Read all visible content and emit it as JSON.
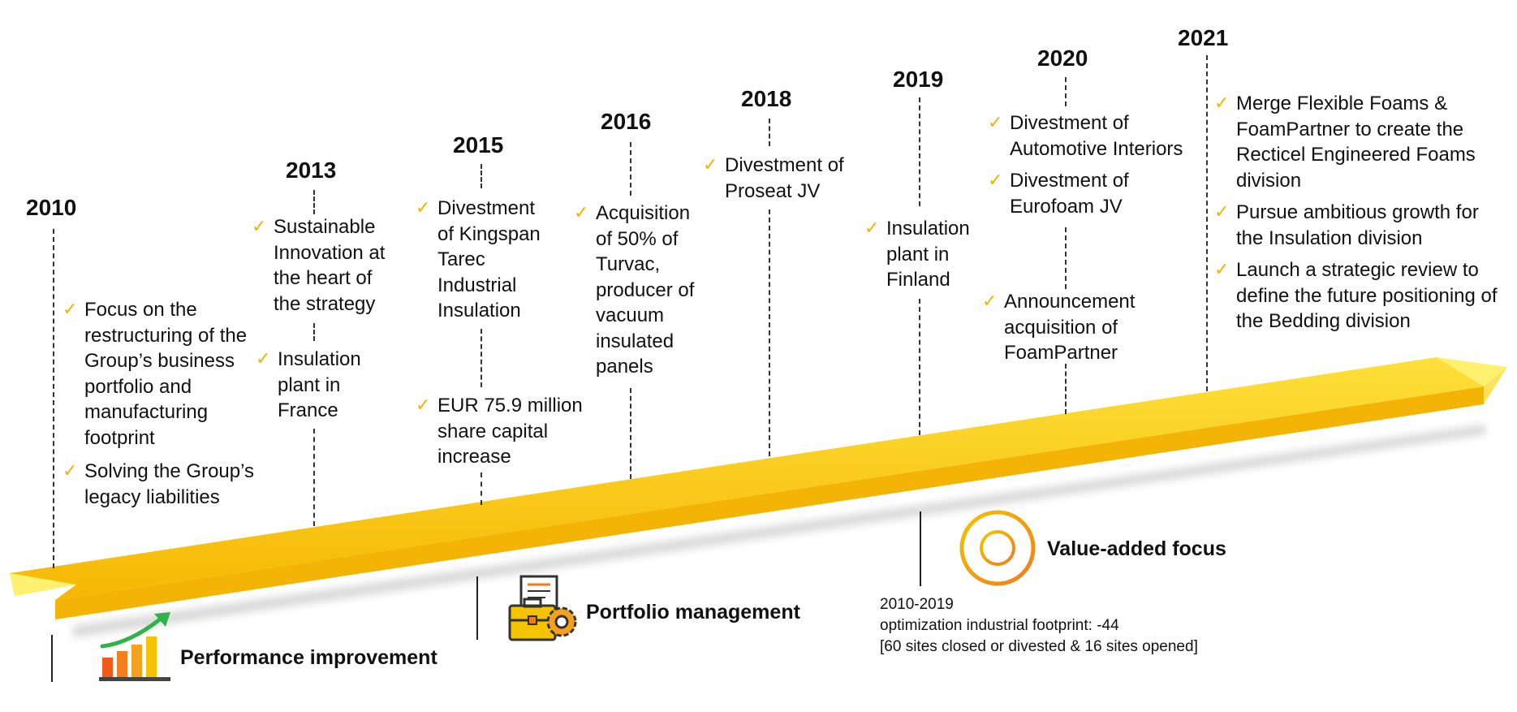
{
  "years": [
    {
      "label": "2010",
      "items": [
        "Focus on the restructuring of the Group’s business portfolio and manufacturing footprint",
        "Solving the Group’s legacy liabilities"
      ]
    },
    {
      "label": "2013",
      "items": [
        "Sustainable Innovation at the heart of the strategy",
        "Insulation plant in France"
      ]
    },
    {
      "label": "2015",
      "items": [
        "Divestment of Kingspan Tarec Industrial Insulation",
        "EUR 75.9 million share capital increase"
      ]
    },
    {
      "label": "2016",
      "items": [
        "Acquisition of 50% of Turvac, producer of vacuum insulated panels"
      ]
    },
    {
      "label": "2018",
      "items": [
        "Divestment of Proseat JV"
      ]
    },
    {
      "label": "2019",
      "items": [
        "Insulation plant in Finland"
      ]
    },
    {
      "label": "2020",
      "items": [
        "Divestment of Automotive Interiors",
        "Divestment of Eurofoam JV",
        "Announcement acquisition of FoamPartner"
      ]
    },
    {
      "label": "2021",
      "items": [
        "Merge Flexible Foams & FoamPartner to create the Recticel Engineered Foams division",
        "Pursue ambitious growth for the Insulation division",
        "Launch a strategic review to define the future positioning of the Bedding division"
      ]
    }
  ],
  "check_symbol": "✓",
  "categories": {
    "performance": "Performance improvement",
    "portfolio": "Portfolio management",
    "value": "Value-added focus"
  },
  "footprint_note": {
    "period": "2010-2019",
    "line1": "optimization industrial footprint: -44",
    "line2": "[60 sites closed or divested & 16 sites opened]"
  },
  "colors": {
    "arrow_top": "#fdd41f",
    "arrow_side": "#f3b405",
    "arrow_head": "#fff170",
    "check": "#f0b400",
    "icon_orange": "#f07c1c",
    "icon_yellow": "#f5c300",
    "icon_green": "#2fb34a"
  },
  "icons": [
    "growth-chart-icon",
    "briefcase-gear-icon",
    "target-icon"
  ]
}
